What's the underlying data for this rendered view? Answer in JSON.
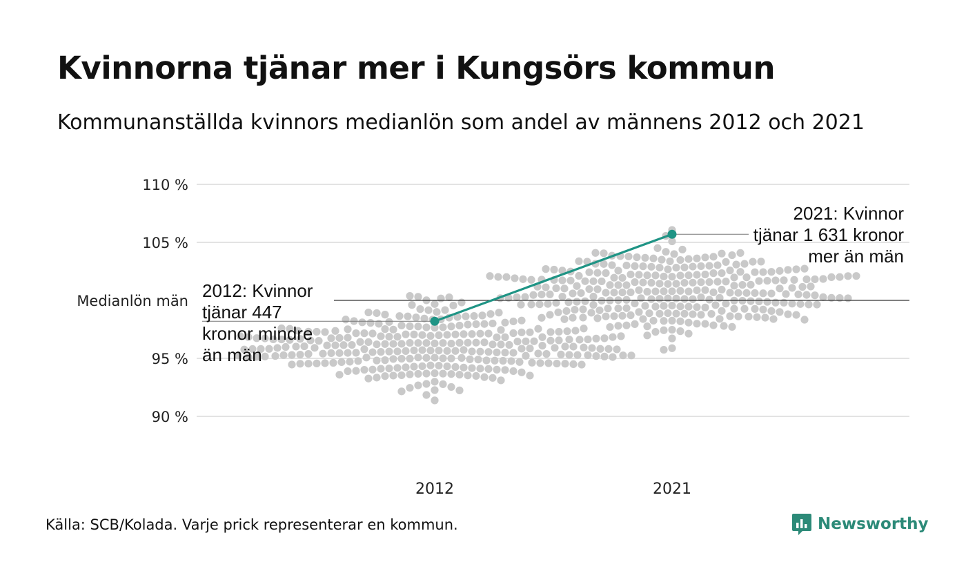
{
  "title": "Kvinnorna tjänar mer i Kungsörs kommun",
  "subtitle": "Kommunanställda kvinnors medianlön som andel av männens 2012 och 2021",
  "source": "Källa: SCB/Kolada. Varje prick representerar en kommun.",
  "brand": {
    "name": "Newsworthy",
    "icon": "newsworthy-logo-icon",
    "color": "#2c8a78"
  },
  "chart_data": {
    "type": "scatter",
    "subtype": "beeswarm",
    "categories": [
      "2012",
      "2021"
    ],
    "ylim": [
      87,
      111
    ],
    "y_ticks": [
      {
        "value": 110,
        "label": "110 %"
      },
      {
        "value": 105,
        "label": "105 %"
      },
      {
        "value": 100,
        "label": "Medianlön män"
      },
      {
        "value": 95,
        "label": "95 %"
      },
      {
        "value": 90,
        "label": "90 %"
      }
    ],
    "grid": true,
    "reference_line": 100,
    "swarm_color": "#c9c9c9",
    "highlight_color": "#1f9485",
    "highlight": [
      {
        "category": "2012",
        "value": 98.2
      },
      {
        "category": "2021",
        "value": 105.7
      }
    ],
    "annotations": [
      {
        "category": "2012",
        "lines": [
          "2012: Kvinnor",
          "tjänar 447",
          "kronor mindre",
          "än män"
        ]
      },
      {
        "category": "2021",
        "lines": [
          "2021: Kvinnor",
          "tjänar 1 631 kronor",
          "mer än män"
        ]
      }
    ]
  }
}
